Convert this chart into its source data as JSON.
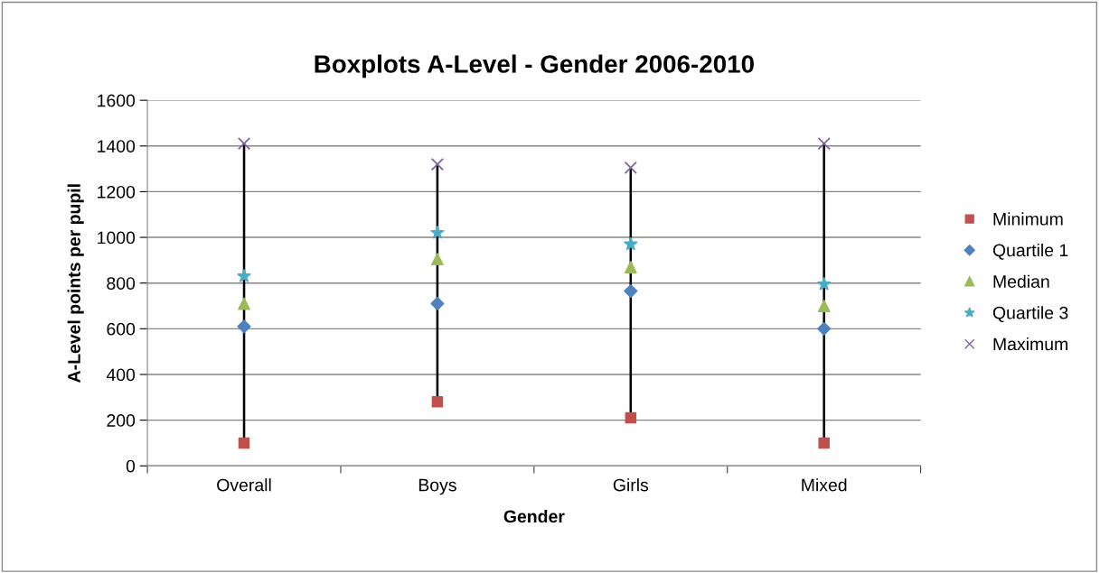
{
  "chart_data": {
    "type": "scatter",
    "title": "Boxplots A-Level - Gender 2006-2010",
    "xlabel": "Gender",
    "ylabel": "A-Level points per pupil",
    "categories": [
      "Overall",
      "Boys",
      "Girls",
      "Mixed"
    ],
    "ylim": [
      0,
      1600
    ],
    "yticks": [
      0,
      200,
      400,
      600,
      800,
      1000,
      1200,
      1400,
      1600
    ],
    "grid": "y",
    "legend": "right",
    "series": [
      {
        "type": "bar",
        "color": "#000000",
        "base": [
          100,
          280,
          210,
          100
        ],
        "values": [
          1310,
          1040,
          1095,
          1310
        ]
      },
      {
        "name": "Minimum",
        "color": "#c0504d",
        "marker": "square",
        "values": [
          100,
          280,
          210,
          100
        ]
      },
      {
        "name": "Quartile 1",
        "color": "#4f81bd",
        "marker": "diamond",
        "values": [
          610,
          710,
          765,
          600
        ]
      },
      {
        "name": "Median",
        "color": "#9bbb59",
        "marker": "triangle",
        "values": [
          710,
          905,
          870,
          700
        ]
      },
      {
        "name": "Quartile 3",
        "color": "#4bacc6",
        "marker": "star",
        "values": [
          830,
          1020,
          970,
          795
        ]
      },
      {
        "name": "Maximum",
        "color": "#8064a2",
        "marker": "cross",
        "values": [
          1410,
          1320,
          1305,
          1410
        ]
      }
    ]
  }
}
